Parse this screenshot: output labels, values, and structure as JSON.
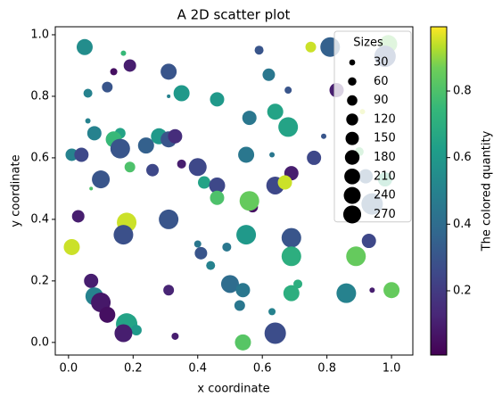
{
  "chart_data": {
    "type": "scatter",
    "title": "A 2D scatter plot",
    "xlabel": "x coordinate",
    "ylabel": "y coordinate",
    "colormap": "viridis",
    "colorbar_label": "The colored quantity",
    "clim": [
      0.007,
      0.993
    ],
    "cticks": [
      {
        "value": 0.2,
        "label": "0.2"
      },
      {
        "value": 0.4,
        "label": "0.4"
      },
      {
        "value": 0.6,
        "label": "0.6"
      },
      {
        "value": 0.8,
        "label": "0.8"
      }
    ],
    "xlim": [
      -0.041,
      1.066
    ],
    "ylim": [
      -0.041,
      1.026
    ],
    "xticks": [
      {
        "value": 0,
        "label": "0.0"
      },
      {
        "value": 0.2,
        "label": "0.2"
      },
      {
        "value": 0.4,
        "label": "0.4"
      },
      {
        "value": 0.6,
        "label": "0.6"
      },
      {
        "value": 0.8,
        "label": "0.8"
      },
      {
        "value": 1,
        "label": "1.0"
      }
    ],
    "yticks": [
      {
        "value": 0,
        "label": "0.0"
      },
      {
        "value": 0.2,
        "label": "0.2"
      },
      {
        "value": 0.4,
        "label": "0.4"
      },
      {
        "value": 0.6,
        "label": "0.6"
      },
      {
        "value": 0.8,
        "label": "0.8"
      },
      {
        "value": 1,
        "label": "1.0"
      }
    ],
    "legend_loc": "upper right",
    "size_legend": {
      "title": "Sizes",
      "sizes": [
        30,
        60,
        90,
        120,
        150,
        180,
        210,
        240,
        270
      ]
    },
    "series": [
      {
        "x": [
          0.05,
          0.17,
          0.14,
          0.19,
          0.31,
          0.12,
          0.06,
          0.31,
          0.35,
          0.46,
          0.59,
          0.62,
          0.68,
          0.75,
          0.81,
          0.83,
          0.99,
          0.98,
          0.06,
          0.08,
          0.16,
          0.14,
          0.16,
          0.24,
          0.28,
          0.31,
          0.33,
          0.01,
          0.04,
          0.19,
          0.26,
          0.35,
          0.4,
          0.1,
          0.07,
          0.42,
          0.46,
          0.46,
          0.55,
          0.56,
          0.64,
          0.68,
          0.63,
          0.64,
          0.69,
          0.67,
          0.76,
          0.79,
          0.9,
          0.92,
          0.98,
          0.94,
          0.93,
          0.57,
          0.56,
          0.03,
          0.18,
          0.17,
          0.31,
          0.01,
          0.4,
          0.41,
          0.49,
          0.55,
          0.69,
          0.69,
          0.89,
          0.44,
          0.07,
          0.31,
          0.5,
          0.54,
          0.53,
          0.71,
          0.69,
          0.86,
          0.94,
          1.0,
          0.08,
          0.1,
          0.12,
          0.18,
          0.21,
          0.17,
          0.33,
          0.63,
          0.64,
          0.54,
          0.91
        ],
        "y": [
          0.96,
          0.94,
          0.88,
          0.9,
          0.88,
          0.83,
          0.81,
          0.8,
          0.81,
          0.79,
          0.95,
          0.87,
          0.82,
          0.96,
          0.96,
          0.82,
          0.97,
          0.93,
          0.72,
          0.68,
          0.68,
          0.66,
          0.63,
          0.64,
          0.67,
          0.66,
          0.67,
          0.61,
          0.61,
          0.57,
          0.56,
          0.58,
          0.57,
          0.53,
          0.5,
          0.52,
          0.51,
          0.47,
          0.61,
          0.73,
          0.75,
          0.7,
          0.61,
          0.51,
          0.55,
          0.52,
          0.6,
          0.67,
          0.62,
          0.54,
          0.53,
          0.45,
          0.33,
          0.44,
          0.46,
          0.41,
          0.39,
          0.35,
          0.4,
          0.31,
          0.32,
          0.29,
          0.31,
          0.35,
          0.34,
          0.28,
          0.28,
          0.25,
          0.2,
          0.17,
          0.19,
          0.17,
          0.12,
          0.19,
          0.16,
          0.16,
          0.17,
          0.17,
          0.15,
          0.13,
          0.09,
          0.06,
          0.04,
          0.03,
          0.02,
          0.1,
          0.03,
          0.0,
          0.75
        ],
        "sizes": [
          217,
          24,
          43,
          131,
          217,
          96,
          67,
          11,
          217,
          171,
          67,
          131,
          43,
          96,
          324,
          171,
          268,
          386,
          24,
          171,
          96,
          217,
          324,
          217,
          217,
          217,
          171,
          131,
          171,
          96,
          131,
          67,
          268,
          268,
          11,
          131,
          217,
          171,
          217,
          171,
          217,
          324,
          24,
          268,
          171,
          171,
          171,
          24,
          67,
          171,
          171,
          386,
          171,
          96,
          324,
          131,
          324,
          324,
          324,
          217,
          43,
          131,
          67,
          324,
          324,
          324,
          324,
          67,
          171,
          96,
          268,
          171,
          96,
          67,
          217,
          324,
          24,
          217,
          268,
          324,
          217,
          386,
          96,
          268,
          43,
          43,
          386,
          217,
          24
        ],
        "colors": [
          0.55,
          0.75,
          0.05,
          0.1,
          0.3,
          0.3,
          0.5,
          0.5,
          0.6,
          0.6,
          0.3,
          0.45,
          0.3,
          0.95,
          0.35,
          0.1,
          0.85,
          0.3,
          0.5,
          0.5,
          0.65,
          0.75,
          0.3,
          0.35,
          0.6,
          0.3,
          0.15,
          0.5,
          0.25,
          0.8,
          0.25,
          0.1,
          0.25,
          0.3,
          0.8,
          0.65,
          0.25,
          0.8,
          0.45,
          0.45,
          0.65,
          0.65,
          0.45,
          0.25,
          0.1,
          0.95,
          0.25,
          0.3,
          0.8,
          0.35,
          0.7,
          0.35,
          0.25,
          0.05,
          0.85,
          0.1,
          0.95,
          0.28,
          0.3,
          0.95,
          0.45,
          0.3,
          0.45,
          0.6,
          0.3,
          0.7,
          0.85,
          0.5,
          0.1,
          0.12,
          0.4,
          0.45,
          0.45,
          0.7,
          0.7,
          0.5,
          0.1,
          0.85,
          0.5,
          0.08,
          0.05,
          0.65,
          0.6,
          0.1,
          0.1,
          0.5,
          0.27,
          0.82,
          0.95
        ]
      }
    ]
  }
}
